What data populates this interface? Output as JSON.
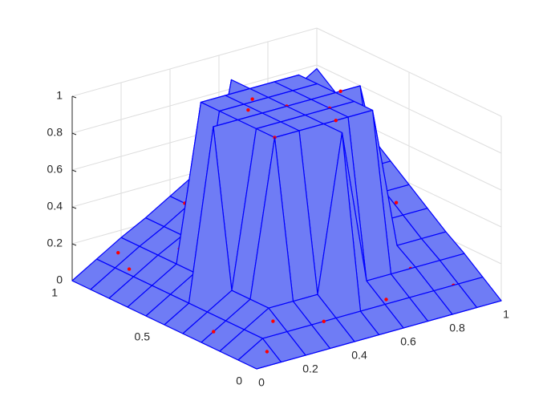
{
  "chart_data": {
    "type": "surface3d",
    "x": [
      0,
      0.1,
      0.2,
      0.3,
      0.4,
      0.5,
      0.6,
      0.7,
      0.8,
      0.9,
      1
    ],
    "y": [
      0,
      0.1,
      0.2,
      0.3,
      0.4,
      0.5,
      0.6,
      0.7,
      0.8,
      0.9,
      1
    ],
    "z": [
      [
        0,
        0,
        0,
        0,
        0,
        0,
        0,
        0,
        0,
        0,
        0
      ],
      [
        0,
        0.08,
        0.08,
        0.08,
        0.08,
        0.08,
        0.08,
        0.08,
        0.08,
        0.08,
        0.08
      ],
      [
        0,
        0.08,
        0.16,
        0.16,
        0.16,
        1,
        0.16,
        0.16,
        0.16,
        0.16,
        0.16
      ],
      [
        0,
        0.08,
        0.16,
        1,
        1,
        1,
        1,
        1,
        0.23,
        0.23,
        0.23
      ],
      [
        0,
        0.08,
        0.16,
        1,
        1,
        1,
        1,
        1,
        0.31,
        0.31,
        0.31
      ],
      [
        0,
        0.08,
        1,
        1,
        1,
        1,
        1,
        1,
        1,
        0.39,
        0.39
      ],
      [
        0,
        0.08,
        0.16,
        1,
        1,
        1,
        1,
        1,
        0.47,
        0.47,
        0.47
      ],
      [
        0,
        0.08,
        0.16,
        1,
        1,
        1,
        1,
        1,
        0.55,
        0.55,
        0.55
      ],
      [
        0,
        0.08,
        0.16,
        0.23,
        0.31,
        1,
        0.47,
        0.55,
        0.62,
        0.62,
        0.62
      ],
      [
        0,
        0.08,
        0.16,
        0.23,
        0.31,
        0.39,
        0.47,
        0.55,
        0.62,
        0.7,
        0.7
      ],
      [
        0,
        0.08,
        0.16,
        0.23,
        0.31,
        0.39,
        0.47,
        0.55,
        0.62,
        0.7,
        0.78
      ]
    ],
    "surface_color": "#0000ff",
    "points": {
      "color": "#ff0000",
      "x": [
        0.05,
        0.12,
        0.22,
        0.35,
        0.08,
        0.62,
        0.78,
        0.91,
        0.15,
        0.4,
        0.55,
        0.7,
        0.85,
        0.95,
        0.3,
        0.18,
        0.5,
        0.45,
        0.6,
        0.38,
        0.88,
        0.72,
        0.25,
        0.66
      ],
      "y": [
        0.3,
        0.85,
        0.6,
        0.1,
        0.05,
        0.12,
        0.2,
        0.45,
        0.95,
        0.92,
        0.3,
        0.88,
        0.7,
        0.95,
        0.3,
        0.15,
        0.5,
        0.62,
        0.4,
        0.55,
        0.1,
        0.5,
        0.75,
        0.96
      ],
      "z": [
        0.04,
        0.09,
        0.17,
        0.08,
        0.04,
        0.09,
        0.16,
        0.35,
        0.12,
        0.31,
        1,
        0.55,
        0.55,
        0.74,
        1,
        0.12,
        1,
        1,
        1,
        1,
        0.08,
        1,
        0.2,
        0.51
      ]
    },
    "xlim": [
      0,
      1
    ],
    "ylim": [
      0,
      1
    ],
    "zlim": [
      0,
      1
    ],
    "xticks": [
      0,
      0.2,
      0.4,
      0.6,
      0.8,
      1
    ],
    "yticks": [
      0,
      0.5,
      1
    ],
    "zticks": [
      0,
      0.2,
      0.4,
      0.6,
      0.8,
      1
    ],
    "grid": true
  }
}
